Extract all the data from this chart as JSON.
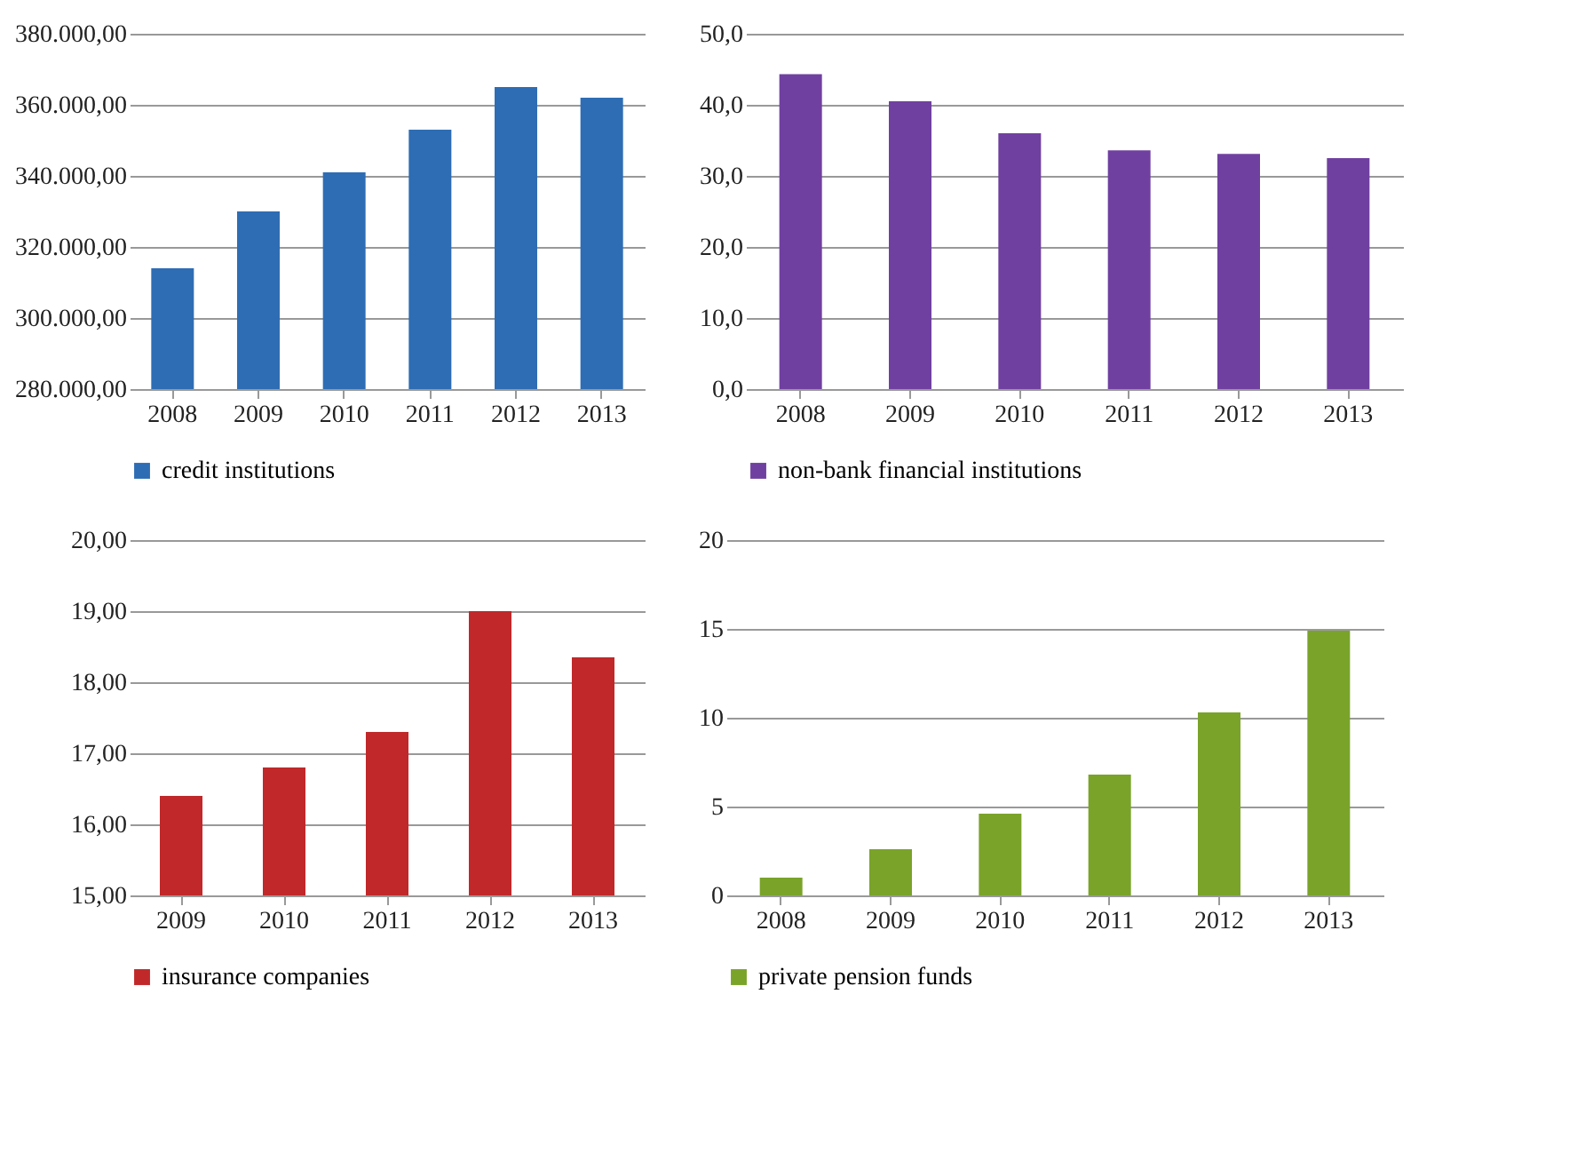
{
  "chart_data": [
    {
      "type": "bar",
      "categories": [
        "2008",
        "2009",
        "2010",
        "2011",
        "2012",
        "2013"
      ],
      "series": [
        {
          "name": "credit institutions",
          "color": "#2e6db4",
          "values": [
            314000,
            330000,
            341000,
            353000,
            365000,
            362000
          ]
        }
      ],
      "ylim": [
        280000,
        380000
      ],
      "yticks": [
        {
          "value": 280000,
          "label": "280.000,00"
        },
        {
          "value": 300000,
          "label": "300.000,00"
        },
        {
          "value": 320000,
          "label": "320.000,00"
        },
        {
          "value": 340000,
          "label": "340.000,00"
        },
        {
          "value": 360000,
          "label": "360.000,00"
        },
        {
          "value": 380000,
          "label": "380.000,00"
        }
      ],
      "grid": "y",
      "legend": "bottom"
    },
    {
      "type": "bar",
      "categories": [
        "2008",
        "2009",
        "2010",
        "2011",
        "2012",
        "2013"
      ],
      "series": [
        {
          "name": "non-bank financial institutions",
          "color": "#7040a0",
          "values": [
            44.3,
            40.5,
            36.0,
            33.6,
            33.1,
            32.5
          ]
        }
      ],
      "ylim": [
        0,
        50
      ],
      "yticks": [
        {
          "value": 0,
          "label": "0,0"
        },
        {
          "value": 10,
          "label": "10,0"
        },
        {
          "value": 20,
          "label": "20,0"
        },
        {
          "value": 30,
          "label": "30,0"
        },
        {
          "value": 40,
          "label": "40,0"
        },
        {
          "value": 50,
          "label": "50,0"
        }
      ],
      "grid": "y",
      "legend": "bottom"
    },
    {
      "type": "bar",
      "categories": [
        "2009",
        "2010",
        "2011",
        "2012",
        "2013"
      ],
      "series": [
        {
          "name": "insurance companies",
          "color": "#c0282a",
          "values": [
            16.4,
            16.8,
            17.3,
            19.0,
            18.35
          ]
        }
      ],
      "ylim": [
        15,
        20
      ],
      "yticks": [
        {
          "value": 15,
          "label": "15,00"
        },
        {
          "value": 16,
          "label": "16,00"
        },
        {
          "value": 17,
          "label": "17,00"
        },
        {
          "value": 18,
          "label": "18,00"
        },
        {
          "value": 19,
          "label": "19,00"
        },
        {
          "value": 20,
          "label": "20,00"
        }
      ],
      "grid": "y",
      "legend": "bottom"
    },
    {
      "type": "bar",
      "categories": [
        "2008",
        "2009",
        "2010",
        "2011",
        "2012",
        "2013"
      ],
      "series": [
        {
          "name": "private pension funds",
          "color": "#7aa32a",
          "values": [
            1.0,
            2.6,
            4.6,
            6.8,
            10.3,
            14.9
          ]
        }
      ],
      "ylim": [
        0,
        20
      ],
      "yticks": [
        0,
        5,
        10,
        15,
        20
      ],
      "grid": "y",
      "legend": "bottom"
    }
  ]
}
